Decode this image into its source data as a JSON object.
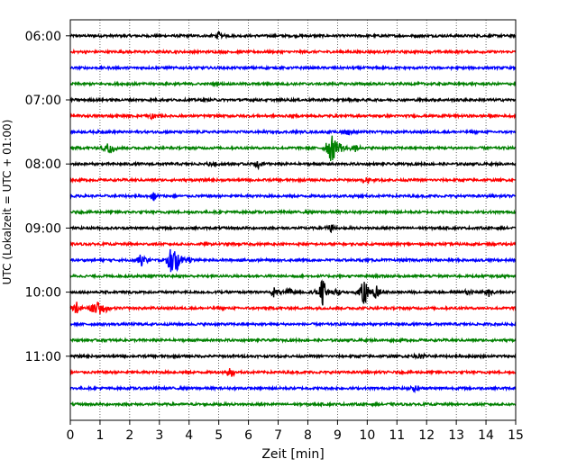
{
  "chart_data": {
    "type": "line",
    "title": "",
    "xlabel": "Zeit  [min]",
    "ylabel": "UTC (Lokalzeit = UTC + 01:00)",
    "xlim": [
      0,
      15
    ],
    "x_ticks": [
      0,
      1,
      2,
      3,
      4,
      5,
      6,
      7,
      8,
      9,
      10,
      11,
      12,
      13,
      14,
      15
    ],
    "y_tick_labels": [
      "06:00",
      "07:00",
      "08:00",
      "09:00",
      "10:00",
      "11:00"
    ],
    "grid": "vertical-dotted",
    "trace_colors": [
      "#000000",
      "#ff0000",
      "#0000ff",
      "#008000"
    ],
    "traces": [
      {
        "start": "06:00",
        "color": "#000000",
        "events": [
          [
            5.0,
            0.25
          ]
        ]
      },
      {
        "start": "06:15",
        "color": "#ff0000",
        "events": []
      },
      {
        "start": "06:30",
        "color": "#0000ff",
        "events": []
      },
      {
        "start": "06:45",
        "color": "#008000",
        "events": []
      },
      {
        "start": "07:00",
        "color": "#000000",
        "events": []
      },
      {
        "start": "07:15",
        "color": "#ff0000",
        "events": [
          [
            2.7,
            0.3
          ]
        ]
      },
      {
        "start": "07:30",
        "color": "#0000ff",
        "events": [
          [
            9.3,
            0.3
          ]
        ]
      },
      {
        "start": "07:45",
        "color": "#008000",
        "events": [
          [
            1.3,
            0.6
          ],
          [
            8.8,
            1.2
          ],
          [
            9.1,
            0.3
          ],
          [
            9.6,
            0.3
          ]
        ]
      },
      {
        "start": "08:00",
        "color": "#000000",
        "events": [
          [
            4.8,
            0.25
          ],
          [
            6.3,
            0.3
          ]
        ]
      },
      {
        "start": "08:15",
        "color": "#ff0000",
        "events": [
          [
            10.0,
            0.25
          ]
        ]
      },
      {
        "start": "08:30",
        "color": "#0000ff",
        "events": [
          [
            2.8,
            0.3
          ]
        ]
      },
      {
        "start": "08:45",
        "color": "#008000",
        "events": []
      },
      {
        "start": "09:00",
        "color": "#000000",
        "events": [
          [
            8.8,
            0.3
          ]
        ]
      },
      {
        "start": "09:15",
        "color": "#ff0000",
        "events": []
      },
      {
        "start": "09:30",
        "color": "#0000ff",
        "events": [
          [
            2.4,
            0.5
          ],
          [
            3.4,
            1.0
          ],
          [
            3.6,
            0.9
          ],
          [
            4.0,
            0.3
          ]
        ]
      },
      {
        "start": "09:45",
        "color": "#008000",
        "events": []
      },
      {
        "start": "10:00",
        "color": "#000000",
        "events": [
          [
            6.9,
            0.4
          ],
          [
            7.4,
            0.3
          ],
          [
            8.5,
            1.0
          ],
          [
            9.0,
            0.3
          ],
          [
            9.9,
            1.0
          ],
          [
            10.3,
            0.6
          ],
          [
            13.4,
            0.25
          ],
          [
            14.1,
            0.25
          ]
        ]
      },
      {
        "start": "10:15",
        "color": "#ff0000",
        "events": [
          [
            0.2,
            0.4
          ],
          [
            0.8,
            0.35
          ],
          [
            1.0,
            0.5
          ],
          [
            1.2,
            0.3
          ]
        ]
      },
      {
        "start": "10:30",
        "color": "#0000ff",
        "events": []
      },
      {
        "start": "10:45",
        "color": "#008000",
        "events": []
      },
      {
        "start": "11:00",
        "color": "#000000",
        "events": [
          [
            11.8,
            0.25
          ]
        ]
      },
      {
        "start": "11:15",
        "color": "#ff0000",
        "events": [
          [
            5.4,
            0.4
          ]
        ]
      },
      {
        "start": "11:30",
        "color": "#0000ff",
        "events": [
          [
            11.6,
            0.3
          ]
        ]
      },
      {
        "start": "11:45",
        "color": "#008000",
        "events": []
      }
    ]
  }
}
